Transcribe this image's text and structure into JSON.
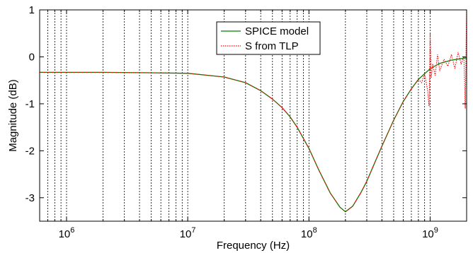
{
  "chart_data": {
    "type": "line",
    "title": "",
    "xlabel": "Frequency (Hz)",
    "ylabel": "Magnitude (dB)",
    "x_scale": "log",
    "xlim": [
      600000,
      2000000000
    ],
    "ylim": [
      -3.5,
      1
    ],
    "grid": {
      "x_minor_dashed": true,
      "y": false
    },
    "legend_position": "top-center",
    "x_ticks": [
      1000000,
      10000000,
      100000000,
      1000000000
    ],
    "x_tick_labels": [
      {
        "base": "10",
        "exp": "6"
      },
      {
        "base": "10",
        "exp": "7"
      },
      {
        "base": "10",
        "exp": "8"
      },
      {
        "base": "10",
        "exp": "9"
      }
    ],
    "y_ticks": [
      1,
      0,
      -1,
      -2,
      -3
    ],
    "y_tick_labels": [
      "1",
      "0",
      "-1",
      "-2",
      "-3"
    ],
    "series": [
      {
        "name": "SPICE model",
        "color": "#008000",
        "style": "solid",
        "x": [
          600000,
          1000000,
          2000000,
          5000000,
          10000000,
          20000000,
          30000000,
          40000000,
          50000000,
          60000000,
          70000000,
          80000000,
          100000000,
          120000000,
          150000000,
          180000000,
          200000000,
          230000000,
          270000000,
          300000000,
          350000000,
          400000000,
          500000000,
          600000000,
          700000000,
          800000000,
          1000000000,
          1200000000,
          1500000000,
          2000000000
        ],
        "y": [
          -0.33,
          -0.33,
          -0.33,
          -0.34,
          -0.35,
          -0.43,
          -0.55,
          -0.72,
          -0.9,
          -1.08,
          -1.28,
          -1.5,
          -1.95,
          -2.4,
          -2.9,
          -3.2,
          -3.3,
          -3.18,
          -2.88,
          -2.65,
          -2.25,
          -1.9,
          -1.35,
          -0.95,
          -0.68,
          -0.48,
          -0.25,
          -0.14,
          -0.07,
          -0.02
        ]
      },
      {
        "name": "S from TLP",
        "color": "#ff0000",
        "style": "dotted",
        "x": [
          600000,
          1000000,
          2000000,
          5000000,
          10000000,
          20000000,
          30000000,
          40000000,
          50000000,
          60000000,
          70000000,
          80000000,
          100000000,
          120000000,
          150000000,
          180000000,
          200000000,
          230000000,
          270000000,
          300000000,
          350000000,
          400000000,
          500000000,
          600000000,
          700000000,
          800000000,
          850000000,
          900000000,
          950000000,
          980000000,
          1000000000,
          1020000000,
          1050000000,
          1100000000,
          1150000000,
          1200000000,
          1300000000,
          1400000000,
          1500000000,
          1600000000,
          1700000000,
          1800000000,
          1900000000,
          1950000000,
          2000000000
        ],
        "y": [
          -0.33,
          -0.33,
          -0.33,
          -0.34,
          -0.35,
          -0.43,
          -0.55,
          -0.72,
          -0.9,
          -1.08,
          -1.28,
          -1.5,
          -1.95,
          -2.4,
          -2.9,
          -3.2,
          -3.3,
          -3.18,
          -2.88,
          -2.65,
          -2.25,
          -1.9,
          -1.35,
          -0.95,
          -0.68,
          -0.48,
          -0.55,
          -0.35,
          -0.7,
          -1.05,
          0.5,
          -0.45,
          -0.15,
          -0.4,
          0.05,
          -0.3,
          -0.05,
          -0.2,
          0.05,
          -0.25,
          0.1,
          -0.15,
          0.0,
          -1.1,
          1.0
        ]
      }
    ]
  }
}
